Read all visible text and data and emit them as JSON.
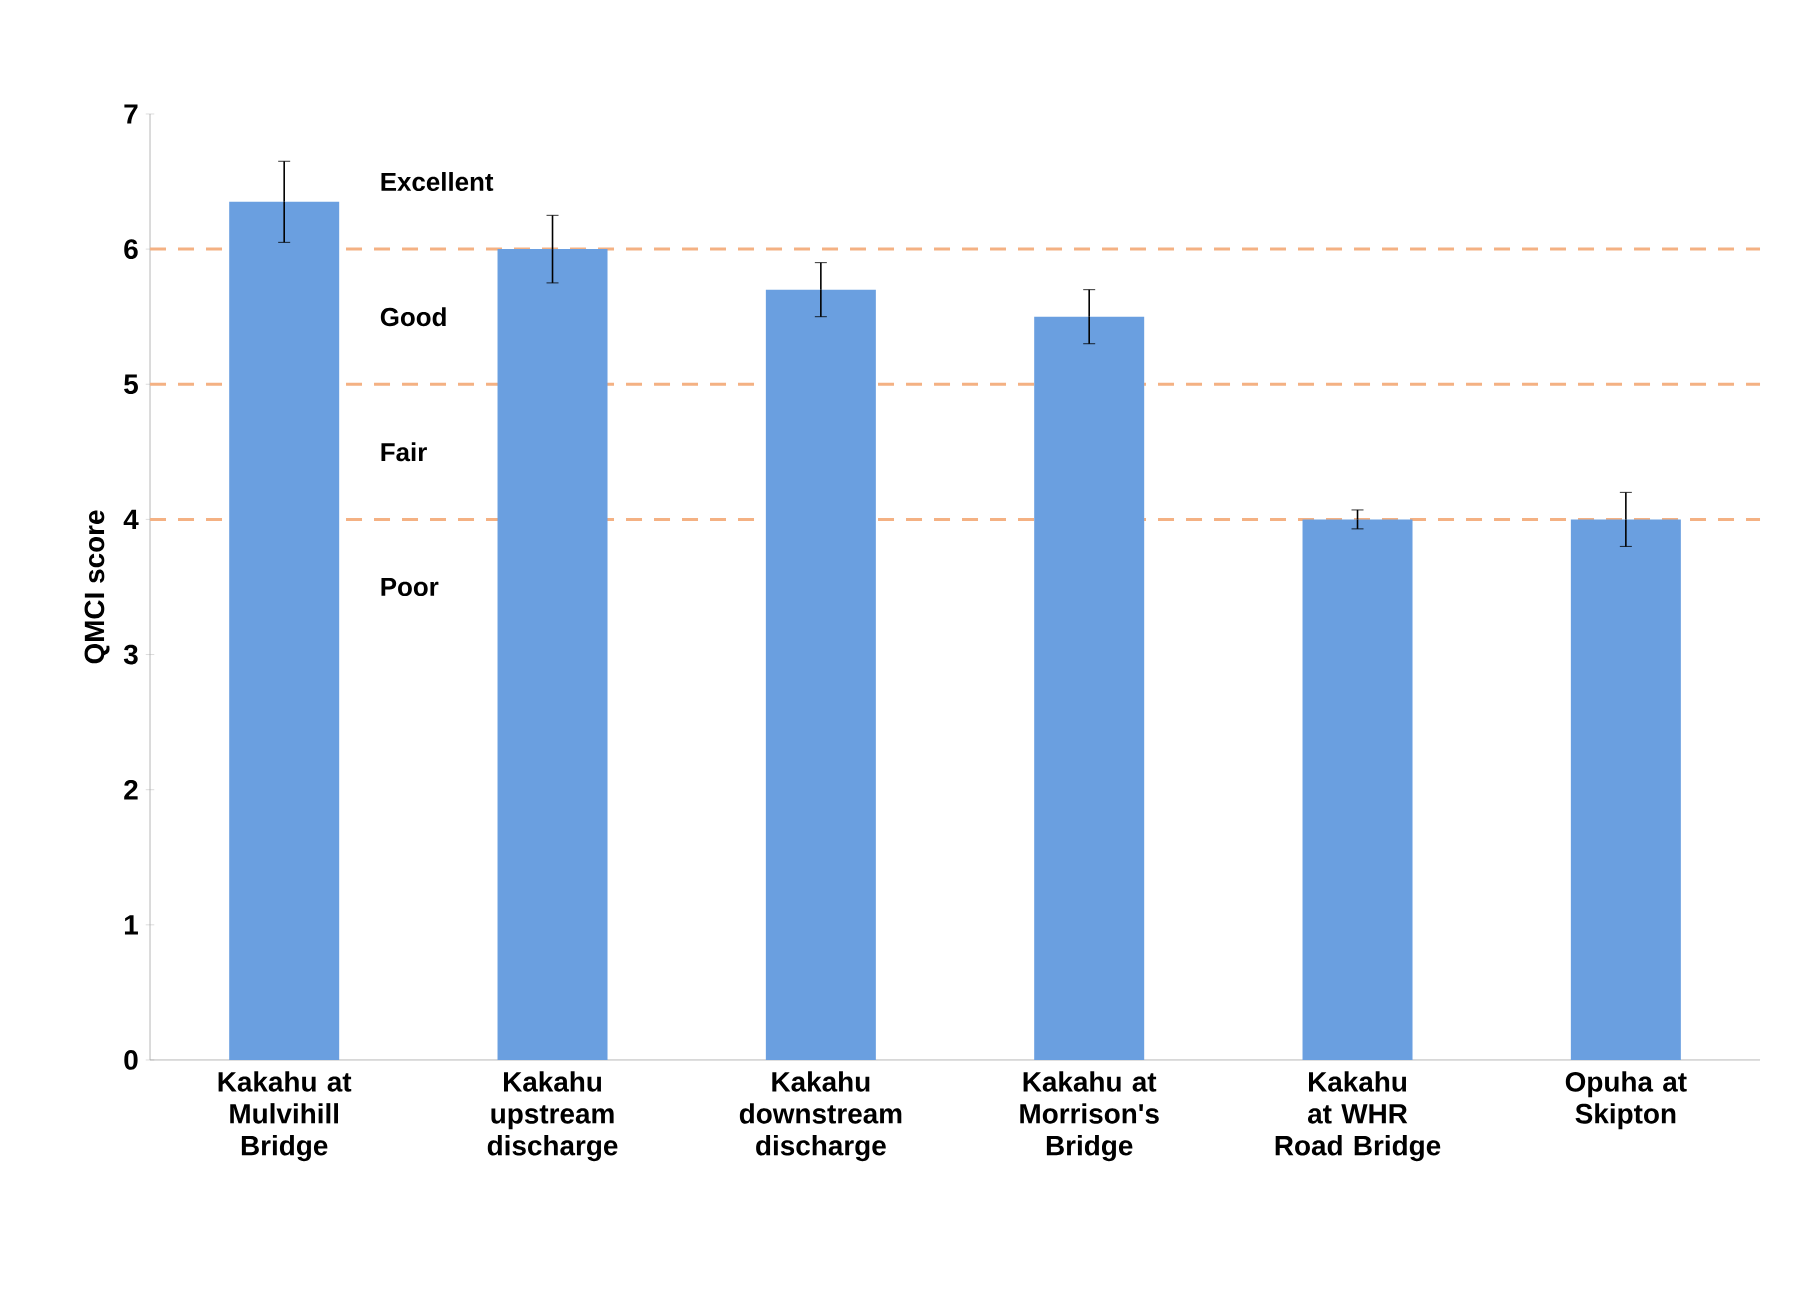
{
  "chart_data": {
    "type": "bar",
    "ylabel": "QMCI score",
    "categories": [
      "Kakahu at Mulvihill Bridge",
      "Kakahu upstream discharge",
      "Kakahu downstream discharge",
      "Kakahu at Morrison's Bridge",
      "Kakahu at WHR Road Bridge",
      "Opuha at Skipton"
    ],
    "values": [
      6.35,
      6.0,
      5.7,
      5.5,
      4.0,
      4.0
    ],
    "errors": [
      0.3,
      0.25,
      0.2,
      0.2,
      0.07,
      0.2
    ],
    "color": "#6a9fe0",
    "ylim": [
      0,
      7
    ],
    "yticks": [
      0,
      1,
      2,
      3,
      4,
      5,
      6,
      7
    ],
    "ref_lines": [
      {
        "axis": "y",
        "value": 6,
        "color": "#f4b183",
        "line_style": "dashed"
      },
      {
        "axis": "y",
        "value": 5,
        "color": "#f4b183",
        "line_style": "dashed"
      },
      {
        "axis": "y",
        "value": 4,
        "color": "#f4b183",
        "line_style": "dashed"
      }
    ],
    "annotations": [
      "Excellent",
      "Good",
      "Fair",
      "Poor"
    ]
  }
}
